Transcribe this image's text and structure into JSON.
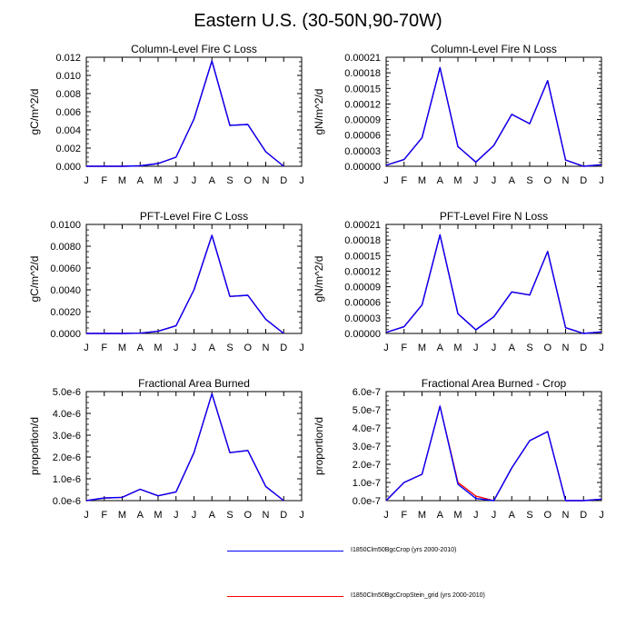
{
  "title": "Eastern U.S. (30-50N,90-70W)",
  "months": [
    "J",
    "F",
    "M",
    "A",
    "M",
    "J",
    "J",
    "A",
    "S",
    "O",
    "N",
    "D",
    "J"
  ],
  "legend": [
    {
      "label": "I1850Clm50BgcCrop (yrs 2000-2010)",
      "color": "#0000ff"
    },
    {
      "label": "I1850Clm50BgcCropStein_grid (yrs 2000-2010)",
      "color": "#ff0000"
    }
  ],
  "chart_data": [
    {
      "type": "line",
      "title": "Column-Level Fire C Loss",
      "ylabel": "gC/m^2/d",
      "ylim": [
        0,
        0.012
      ],
      "yticks": [
        0,
        0.002,
        0.004,
        0.006,
        0.008,
        0.01,
        0.012
      ],
      "yticklabels": [
        "0.000",
        "0.002",
        "0.004",
        "0.006",
        "0.008",
        "0.010",
        "0.012"
      ],
      "x": [
        1,
        2,
        3,
        4,
        5,
        6,
        7,
        8,
        9,
        10,
        11,
        12
      ],
      "series": [
        {
          "color": "#ff0000",
          "values": [
            0.0,
            0.0,
            0.0,
            5e-05,
            0.0003,
            0.001,
            0.0052,
            0.0116,
            0.0045,
            0.0046,
            0.0016,
            0.0
          ]
        },
        {
          "color": "#0000ff",
          "values": [
            0.0,
            0.0,
            0.0,
            5e-05,
            0.0003,
            0.001,
            0.0052,
            0.0116,
            0.0045,
            0.0046,
            0.0016,
            0.0
          ]
        }
      ]
    },
    {
      "type": "line",
      "title": "Column-Level Fire N Loss",
      "ylabel": "gN/m^2/d",
      "ylim": [
        0,
        0.00021
      ],
      "yticks": [
        0,
        3e-05,
        6e-05,
        9e-05,
        0.00012,
        0.00015,
        0.00018,
        0.00021
      ],
      "yticklabels": [
        "0.00000",
        "0.00003",
        "0.00006",
        "0.00009",
        "0.00012",
        "0.00015",
        "0.00018",
        "0.00021"
      ],
      "x": [
        1,
        2,
        3,
        4,
        5,
        6,
        7,
        8,
        9,
        10,
        11,
        12,
        13
      ],
      "series": [
        {
          "color": "#ff0000",
          "values": [
            2e-06,
            1.3e-05,
            5.5e-05,
            0.00019,
            3.8e-05,
            8e-06,
            4e-05,
            0.0001,
            8.2e-05,
            0.000165,
            1.2e-05,
            0.0,
            3e-06
          ]
        },
        {
          "color": "#0000ff",
          "values": [
            2e-06,
            1.3e-05,
            5.5e-05,
            0.00019,
            3.8e-05,
            8e-06,
            4e-05,
            0.0001,
            8.2e-05,
            0.000165,
            1.2e-05,
            0.0,
            3e-06
          ]
        }
      ]
    },
    {
      "type": "line",
      "title": "PFT-Level Fire C Loss",
      "ylabel": "gC/m^2/d",
      "ylim": [
        0,
        0.01
      ],
      "yticks": [
        0,
        0.002,
        0.004,
        0.006,
        0.008,
        0.01
      ],
      "yticklabels": [
        "0.0000",
        "0.0020",
        "0.0040",
        "0.0060",
        "0.0080",
        "0.0100"
      ],
      "x": [
        1,
        2,
        3,
        4,
        5,
        6,
        7,
        8,
        9,
        10,
        11,
        12
      ],
      "series": [
        {
          "color": "#ff0000",
          "values": [
            0.0,
            0.0,
            0.0,
            3e-05,
            0.0002,
            0.0007,
            0.004,
            0.009,
            0.0034,
            0.0035,
            0.0013,
            0.0
          ]
        },
        {
          "color": "#0000ff",
          "values": [
            0.0,
            0.0,
            0.0,
            3e-05,
            0.0002,
            0.0007,
            0.004,
            0.009,
            0.0034,
            0.0035,
            0.0013,
            0.0
          ]
        }
      ]
    },
    {
      "type": "line",
      "title": "PFT-Level Fire N Loss",
      "ylabel": "gN/m^2/d",
      "ylim": [
        0,
        0.00021
      ],
      "yticks": [
        0,
        3e-05,
        6e-05,
        9e-05,
        0.00012,
        0.00015,
        0.00018,
        0.00021
      ],
      "yticklabels": [
        "0.00000",
        "0.00003",
        "0.00006",
        "0.00009",
        "0.00012",
        "0.00015",
        "0.00018",
        "0.00021"
      ],
      "x": [
        1,
        2,
        3,
        4,
        5,
        6,
        7,
        8,
        9,
        10,
        11,
        12,
        13
      ],
      "series": [
        {
          "color": "#ff0000",
          "values": [
            2e-06,
            1.3e-05,
            5.5e-05,
            0.00019,
            3.8e-05,
            7e-06,
            3.2e-05,
            8e-05,
            7.4e-05,
            0.000158,
            1.1e-05,
            0.0,
            3e-06
          ]
        },
        {
          "color": "#0000ff",
          "values": [
            2e-06,
            1.3e-05,
            5.5e-05,
            0.00019,
            3.8e-05,
            7e-06,
            3.2e-05,
            8e-05,
            7.4e-05,
            0.000158,
            1.1e-05,
            0.0,
            3e-06
          ]
        }
      ]
    },
    {
      "type": "line",
      "title": "Fractional Area Burned",
      "ylabel": "proportion/d",
      "ylim": [
        0,
        5e-06
      ],
      "yticks": [
        0,
        1e-06,
        2e-06,
        3e-06,
        4e-06,
        5e-06
      ],
      "yticklabels": [
        "0.0e-6",
        "1.0e-6",
        "2.0e-6",
        "3.0e-6",
        "4.0e-6",
        "5.0e-6"
      ],
      "x": [
        1,
        2,
        3,
        4,
        5,
        6,
        7,
        8,
        9,
        10,
        11,
        12
      ],
      "series": [
        {
          "color": "#ff0000",
          "values": [
            0.0,
            1.2e-07,
            1.5e-07,
            5.2e-07,
            2.2e-07,
            4e-07,
            2.2e-06,
            4.9e-06,
            2.2e-06,
            2.3e-06,
            6.5e-07,
            0.0
          ]
        },
        {
          "color": "#0000ff",
          "values": [
            0.0,
            1.2e-07,
            1.5e-07,
            5.2e-07,
            2.2e-07,
            4e-07,
            2.2e-06,
            4.9e-06,
            2.2e-06,
            2.3e-06,
            6.5e-07,
            0.0
          ]
        }
      ]
    },
    {
      "type": "line",
      "title": "Fractional Area Burned - Crop",
      "ylabel": "proportion/d",
      "ylim": [
        0,
        6e-07
      ],
      "yticks": [
        0,
        1e-07,
        2e-07,
        3e-07,
        4e-07,
        5e-07,
        6e-07
      ],
      "yticklabels": [
        "0.0e-7",
        "1.0e-7",
        "2.0e-7",
        "3.0e-7",
        "4.0e-7",
        "5.0e-7",
        "6.0e-7"
      ],
      "x": [
        1,
        2,
        3,
        4,
        5,
        6,
        7,
        8,
        9,
        10,
        11,
        12,
        13
      ],
      "series": [
        {
          "color": "#ff0000",
          "values": [
            0.0,
            1e-07,
            1.45e-07,
            5.2e-07,
            1e-07,
            2.5e-08,
            0.0,
            1.8e-07,
            3.3e-07,
            3.8e-07,
            0.0,
            0.0,
            8e-09
          ]
        },
        {
          "color": "#0000ff",
          "values": [
            0.0,
            1e-07,
            1.45e-07,
            5.2e-07,
            9e-08,
            1.2e-08,
            0.0,
            1.8e-07,
            3.3e-07,
            3.8e-07,
            0.0,
            0.0,
            8e-09
          ]
        }
      ]
    }
  ]
}
